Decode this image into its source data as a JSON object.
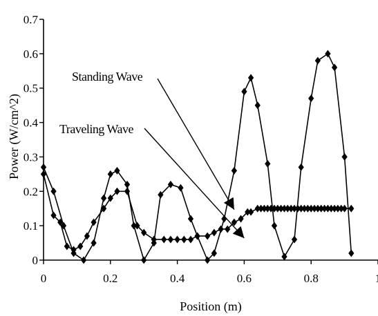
{
  "chart_data": {
    "type": "line",
    "xlabel": "Position (m)",
    "ylabel": "Power (W/cm^2)",
    "xlim": [
      0,
      1
    ],
    "ylim": [
      0,
      0.7
    ],
    "x_ticks": [
      "0",
      "0.2",
      "0.4",
      "0.6",
      "0.8",
      "1"
    ],
    "y_ticks": [
      "0",
      "0.1",
      "0.2",
      "0.3",
      "0.4",
      "0.5",
      "0.6",
      "0.7"
    ],
    "grid": false,
    "annotations": [
      {
        "text": "Standing Wave",
        "points_to": [
          0.57,
          0.147
        ]
      },
      {
        "text": "Traveling Wave",
        "points_to": [
          0.6,
          0.064
        ]
      }
    ],
    "series": [
      {
        "name": "Standing Wave",
        "marker": "diamond",
        "color": "#000000",
        "x": [
          0,
          0.03,
          0.06,
          0.09,
          0.12,
          0.15,
          0.18,
          0.2,
          0.22,
          0.25,
          0.27,
          0.3,
          0.33,
          0.35,
          0.38,
          0.41,
          0.44,
          0.46,
          0.49,
          0.51,
          0.54,
          0.57,
          0.6,
          0.62,
          0.64,
          0.67,
          0.69,
          0.72,
          0.75,
          0.77,
          0.8,
          0.82,
          0.85,
          0.87,
          0.9,
          0.92
        ],
        "y": [
          0.27,
          0.2,
          0.1,
          0.02,
          0.0,
          0.05,
          0.18,
          0.25,
          0.26,
          0.22,
          0.1,
          0.0,
          0.05,
          0.19,
          0.22,
          0.21,
          0.12,
          0.07,
          0.0,
          0.02,
          0.12,
          0.26,
          0.49,
          0.53,
          0.45,
          0.28,
          0.1,
          0.01,
          0.06,
          0.27,
          0.47,
          0.58,
          0.6,
          0.56,
          0.3,
          0.02
        ]
      },
      {
        "name": "Traveling Wave",
        "marker": "diamond",
        "color": "#000000",
        "x": [
          0,
          0.03,
          0.05,
          0.07,
          0.09,
          0.11,
          0.13,
          0.15,
          0.18,
          0.2,
          0.22,
          0.25,
          0.28,
          0.3,
          0.33,
          0.36,
          0.38,
          0.4,
          0.42,
          0.44,
          0.46,
          0.49,
          0.51,
          0.53,
          0.55,
          0.57,
          0.59,
          0.61,
          0.62,
          0.64,
          0.65,
          0.66,
          0.67,
          0.68,
          0.69,
          0.7,
          0.71,
          0.72,
          0.73,
          0.74,
          0.75,
          0.76,
          0.77,
          0.78,
          0.79,
          0.8,
          0.81,
          0.82,
          0.83,
          0.84,
          0.85,
          0.86,
          0.87,
          0.88,
          0.89,
          0.9,
          0.92
        ],
        "y": [
          0.25,
          0.13,
          0.11,
          0.04,
          0.03,
          0.04,
          0.07,
          0.11,
          0.15,
          0.18,
          0.2,
          0.2,
          0.1,
          0.08,
          0.06,
          0.06,
          0.06,
          0.06,
          0.06,
          0.06,
          0.07,
          0.07,
          0.08,
          0.09,
          0.09,
          0.11,
          0.12,
          0.14,
          0.14,
          0.15,
          0.15,
          0.15,
          0.15,
          0.15,
          0.15,
          0.15,
          0.15,
          0.15,
          0.15,
          0.15,
          0.15,
          0.15,
          0.15,
          0.15,
          0.15,
          0.15,
          0.15,
          0.15,
          0.15,
          0.15,
          0.15,
          0.15,
          0.15,
          0.15,
          0.15,
          0.15,
          0.15
        ]
      }
    ]
  }
}
